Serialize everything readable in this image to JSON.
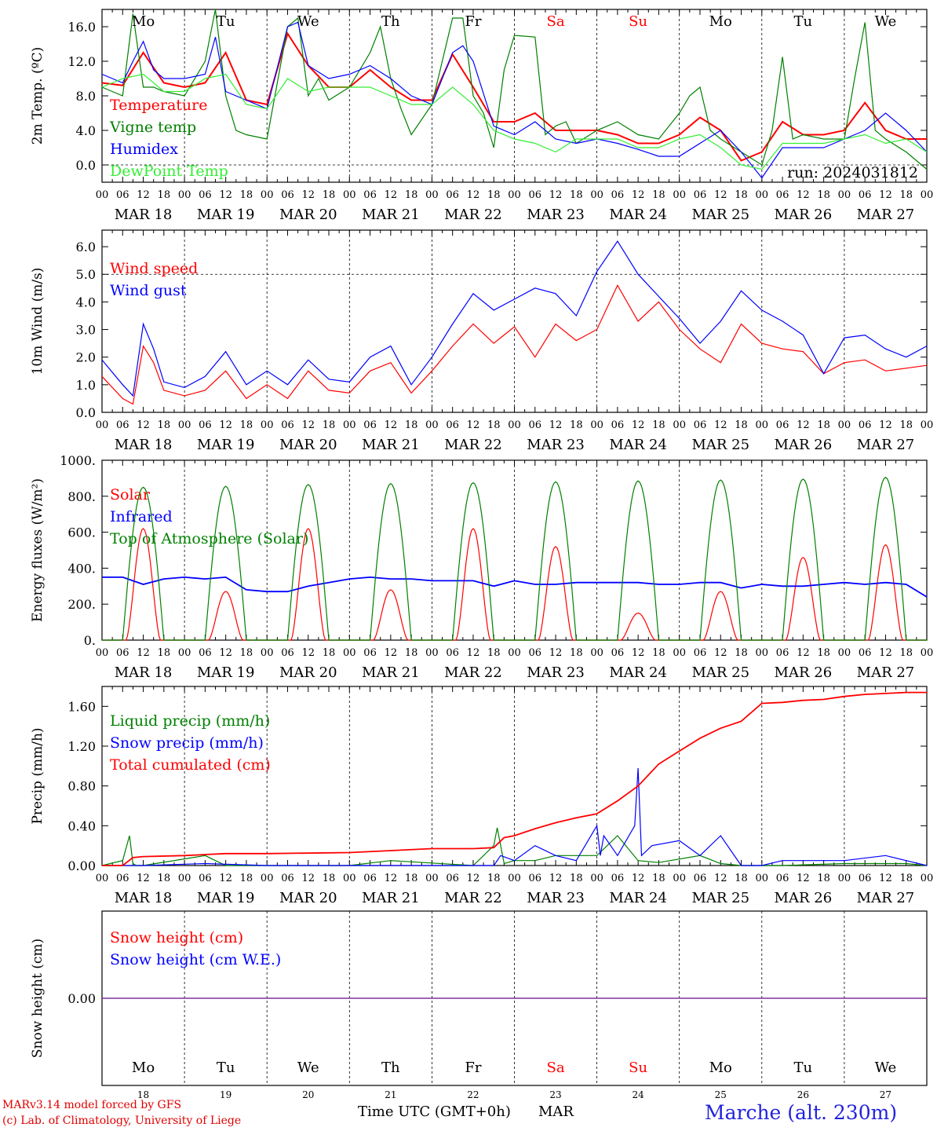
{
  "chart_data": [
    {
      "type": "line",
      "ylabel": "2m Temp. (ºC)",
      "ylim": [
        -2,
        18
      ],
      "yticks": [
        0,
        4,
        8,
        12,
        16
      ],
      "ytick_labels": [
        "0.0",
        "4.0",
        "8.0",
        "12.0",
        "16.0"
      ],
      "x_unit": "hours since MAR 18 00 UTC",
      "annotation": "run: 2024031812",
      "zero_line": "dashed",
      "series": [
        {
          "name": "Temperature",
          "color": "#ff0000",
          "x": [
            0,
            6,
            12,
            18,
            24,
            30,
            36,
            42,
            48,
            54,
            60,
            66,
            72,
            78,
            84,
            90,
            96,
            102,
            108,
            114,
            120,
            126,
            132,
            138,
            144,
            150,
            156,
            162,
            168,
            174,
            180,
            186,
            192,
            198,
            204,
            210,
            216,
            222,
            228,
            234,
            240
          ],
          "values": [
            9.5,
            9.2,
            13,
            9.5,
            9.0,
            9.5,
            13,
            7.5,
            7.0,
            15.2,
            11.5,
            9,
            9,
            11,
            9,
            7.5,
            7.5,
            12.8,
            9,
            5,
            5,
            6,
            4,
            4,
            4,
            3.5,
            2.5,
            2.5,
            3.5,
            5.5,
            4,
            0.5,
            1.5,
            5,
            3.5,
            3.5,
            4,
            7.2,
            4,
            3,
            3
          ]
        },
        {
          "name": "Vigne temp",
          "color": "#008000",
          "x": [
            0,
            6,
            9,
            12,
            15,
            18,
            24,
            30,
            33,
            36,
            39,
            42,
            48,
            54,
            57,
            60,
            63,
            66,
            72,
            78,
            81,
            84,
            87,
            90,
            96,
            102,
            105,
            108,
            111,
            114,
            117,
            120,
            126,
            129,
            132,
            135,
            138,
            144,
            150,
            156,
            162,
            168,
            171,
            174,
            177,
            180,
            186,
            192,
            195,
            198,
            201,
            204,
            210,
            216,
            219,
            222,
            225,
            228,
            234,
            240
          ],
          "values": [
            9,
            8,
            17.5,
            9,
            9,
            8.5,
            8,
            12,
            18,
            8,
            4,
            3.5,
            3,
            16,
            17,
            8,
            10,
            7.5,
            9,
            13,
            16,
            10,
            6.5,
            3.5,
            7,
            17,
            17,
            8,
            6,
            2,
            11,
            15,
            14.8,
            3.5,
            4.5,
            5,
            2.5,
            4,
            5,
            3.5,
            3,
            6,
            8,
            9,
            4,
            3,
            1.5,
            0,
            4,
            12.5,
            3,
            3.5,
            3,
            3,
            10,
            16.5,
            4,
            3,
            1.5,
            -0.5
          ]
        },
        {
          "name": "Humidex",
          "color": "#0000ff",
          "x": [
            0,
            6,
            9,
            12,
            15,
            18,
            24,
            30,
            33,
            36,
            42,
            48,
            54,
            57,
            60,
            66,
            72,
            78,
            84,
            90,
            96,
            102,
            105,
            108,
            114,
            120,
            126,
            132,
            138,
            144,
            150,
            156,
            162,
            168,
            174,
            180,
            186,
            192,
            198,
            204,
            210,
            216,
            222,
            228,
            234,
            240
          ],
          "values": [
            10.5,
            9.5,
            12,
            14.3,
            11,
            10,
            10,
            10.5,
            14.8,
            8.5,
            7.5,
            6.5,
            16,
            16.5,
            11.5,
            10,
            10.5,
            11.5,
            10,
            8,
            7,
            13,
            13.8,
            12,
            4.5,
            3.5,
            5,
            3,
            2.5,
            3,
            2.5,
            1.8,
            1,
            1,
            2.5,
            4,
            1.5,
            -1.5,
            2,
            2,
            2,
            3,
            4,
            6,
            4,
            1.5
          ]
        },
        {
          "name": "DewPoint Temp",
          "color": "#33ee33",
          "x": [
            0,
            6,
            12,
            18,
            24,
            30,
            36,
            42,
            48,
            54,
            60,
            66,
            72,
            78,
            84,
            90,
            96,
            102,
            108,
            114,
            120,
            126,
            132,
            138,
            144,
            150,
            156,
            162,
            168,
            174,
            180,
            186,
            192,
            198,
            204,
            210,
            216,
            222,
            228,
            234,
            240
          ],
          "values": [
            9,
            10,
            10.5,
            8.5,
            8.5,
            10,
            10.5,
            7,
            6.5,
            10,
            8.5,
            9,
            9,
            9,
            8,
            7,
            7,
            9,
            7,
            4,
            3,
            2.5,
            1.5,
            3,
            3,
            3,
            2,
            2,
            3,
            3.5,
            2,
            0,
            -0.5,
            2.5,
            2.5,
            2.5,
            3,
            3.5,
            2.5,
            3,
            1.5
          ]
        }
      ]
    },
    {
      "type": "line",
      "ylabel": "10m Wind (m/s)",
      "ylim": [
        0,
        6.6
      ],
      "yticks": [
        0,
        1,
        2,
        3,
        4,
        5,
        6
      ],
      "ytick_labels": [
        "0.0",
        "1.0",
        "2.0",
        "3.0",
        "4.0",
        "5.0",
        "6.0"
      ],
      "reference_line": 5.0,
      "series": [
        {
          "name": "Wind speed",
          "color": "#ff0000",
          "x": [
            0,
            6,
            9,
            12,
            15,
            18,
            24,
            30,
            36,
            42,
            48,
            54,
            60,
            66,
            72,
            78,
            84,
            90,
            96,
            102,
            108,
            114,
            120,
            126,
            132,
            138,
            144,
            150,
            156,
            162,
            168,
            174,
            180,
            186,
            192,
            198,
            204,
            210,
            216,
            222,
            228,
            234,
            240
          ],
          "values": [
            1.3,
            0.5,
            0.3,
            2.4,
            1.8,
            0.8,
            0.6,
            0.8,
            1.5,
            0.5,
            1.0,
            0.5,
            1.5,
            0.8,
            0.7,
            1.5,
            1.8,
            0.7,
            1.5,
            2.4,
            3.2,
            2.5,
            3.1,
            2.0,
            3.2,
            2.6,
            3.0,
            4.6,
            3.3,
            4.0,
            3.0,
            2.3,
            1.8,
            3.2,
            2.5,
            2.3,
            2.2,
            1.4,
            1.8,
            1.9,
            1.5,
            1.6,
            1.7
          ]
        },
        {
          "name": "Wind gust",
          "color": "#0000ff",
          "x": [
            0,
            6,
            9,
            12,
            15,
            18,
            24,
            30,
            36,
            42,
            48,
            54,
            60,
            66,
            72,
            78,
            84,
            90,
            96,
            102,
            108,
            114,
            120,
            126,
            132,
            138,
            144,
            150,
            156,
            162,
            168,
            174,
            180,
            186,
            192,
            198,
            204,
            210,
            216,
            222,
            228,
            234,
            240
          ],
          "values": [
            1.9,
            1.0,
            0.6,
            3.2,
            2.3,
            1.1,
            0.9,
            1.3,
            2.2,
            1.0,
            1.5,
            1.0,
            1.9,
            1.2,
            1.1,
            2.0,
            2.4,
            1.0,
            2.0,
            3.2,
            4.3,
            3.7,
            4.1,
            4.5,
            4.3,
            3.5,
            5.1,
            6.2,
            5.0,
            4.2,
            3.4,
            2.5,
            3.3,
            4.4,
            3.7,
            3.3,
            2.8,
            1.4,
            2.7,
            2.8,
            2.3,
            2.0,
            2.4
          ]
        }
      ]
    },
    {
      "type": "line",
      "ylabel": "Energy fluxes (W/m²)",
      "ylim": [
        0,
        1000
      ],
      "yticks": [
        0,
        200,
        400,
        600,
        800,
        1000
      ],
      "ytick_labels": [
        "0.",
        "200.",
        "400.",
        "600.",
        "800.",
        "1000."
      ],
      "series": [
        {
          "name": "Solar",
          "color": "#ff0000",
          "day_peaks": [
            620,
            270,
            620,
            280,
            620,
            520,
            150,
            270,
            460,
            530
          ]
        },
        {
          "name": "Infrared",
          "color": "#0000ff",
          "x": [
            0,
            6,
            12,
            18,
            24,
            30,
            36,
            42,
            48,
            54,
            60,
            66,
            72,
            78,
            84,
            90,
            96,
            102,
            108,
            114,
            120,
            126,
            132,
            138,
            144,
            150,
            156,
            162,
            168,
            174,
            180,
            186,
            192,
            198,
            204,
            210,
            216,
            222,
            228,
            234,
            240
          ],
          "values": [
            350,
            350,
            310,
            340,
            350,
            340,
            350,
            280,
            270,
            270,
            300,
            320,
            340,
            350,
            340,
            340,
            330,
            330,
            330,
            300,
            330,
            310,
            310,
            320,
            320,
            320,
            320,
            310,
            310,
            320,
            320,
            290,
            310,
            300,
            300,
            310,
            320,
            310,
            320,
            310,
            240
          ]
        },
        {
          "name": "Top of Atmosphere (Solar)",
          "color": "#008000",
          "day_peaks": [
            850,
            855,
            865,
            870,
            875,
            880,
            885,
            890,
            895,
            905
          ]
        }
      ]
    },
    {
      "type": "line",
      "ylabel": "Precip (mm/h)",
      "ylim": [
        0,
        1.8
      ],
      "yticks": [
        0,
        0.4,
        0.8,
        1.2,
        1.6
      ],
      "ytick_labels": [
        "0.00",
        "0.40",
        "0.80",
        "1.20",
        "1.60"
      ],
      "series": [
        {
          "name": "Liquid precip (mm/h)",
          "color": "#008000",
          "x": [
            0,
            6,
            8,
            9,
            10,
            12,
            30,
            36,
            48,
            72,
            84,
            108,
            114,
            115,
            117,
            120,
            126,
            132,
            144,
            150,
            156,
            162,
            174,
            180,
            186,
            192,
            198,
            216,
            234,
            240
          ],
          "values": [
            0,
            0.05,
            0.3,
            0.02,
            0,
            0,
            0.1,
            0,
            0,
            0,
            0.05,
            0,
            0.2,
            0.38,
            0.02,
            0.05,
            0.05,
            0.1,
            0.1,
            0.3,
            0.05,
            0.03,
            0.1,
            0.02,
            0,
            0,
            0,
            0.02,
            0.02,
            0
          ]
        },
        {
          "name": "Snow precip (mm/h)",
          "color": "#0000ff",
          "x": [
            0,
            6,
            12,
            30,
            48,
            84,
            114,
            116,
            120,
            126,
            132,
            138,
            144,
            145,
            146,
            150,
            155,
            156,
            157,
            160,
            168,
            174,
            180,
            186,
            192,
            198,
            216,
            228,
            234,
            240
          ],
          "values": [
            0,
            0,
            0,
            0.02,
            0,
            0,
            0,
            0.1,
            0.05,
            0.2,
            0.1,
            0.05,
            0.4,
            0.1,
            0.3,
            0.1,
            0.4,
            0.98,
            0.1,
            0.2,
            0.25,
            0.1,
            0.3,
            0,
            0,
            0.05,
            0.05,
            0.1,
            0.05,
            0
          ]
        },
        {
          "name": "Total cumulated (cm)",
          "color": "#ff0000",
          "x": [
            0,
            6,
            9,
            12,
            24,
            36,
            48,
            72,
            84,
            96,
            108,
            114,
            117,
            120,
            126,
            132,
            138,
            144,
            150,
            156,
            162,
            168,
            174,
            180,
            186,
            192,
            198,
            204,
            210,
            216,
            222,
            228,
            234,
            240
          ],
          "values": [
            0,
            0,
            0.08,
            0.09,
            0.1,
            0.12,
            0.12,
            0.13,
            0.15,
            0.17,
            0.17,
            0.18,
            0.28,
            0.3,
            0.37,
            0.43,
            0.48,
            0.52,
            0.65,
            0.8,
            1.02,
            1.15,
            1.28,
            1.38,
            1.45,
            1.63,
            1.64,
            1.66,
            1.67,
            1.7,
            1.72,
            1.73,
            1.74,
            1.74
          ]
        }
      ]
    },
    {
      "type": "line",
      "ylabel": "Snow height (cm)",
      "ylim": [
        -1,
        1
      ],
      "yticks": [
        0
      ],
      "ytick_labels": [
        "0.00"
      ],
      "series": [
        {
          "name": "Snow height (cm)",
          "color": "#ff0000",
          "values": [
            0
          ]
        },
        {
          "name": "Snow height (cm W.E.)",
          "color": "#0000ff",
          "values": [
            0
          ]
        }
      ]
    }
  ],
  "days": {
    "weekdays": [
      "Mo",
      "Tu",
      "We",
      "Th",
      "Fr",
      "Sa",
      "Su",
      "Mo",
      "Tu",
      "We"
    ],
    "weekend_color": "#ff0000",
    "weekday_color": "#000000",
    "weekend_flags": [
      false,
      false,
      false,
      false,
      false,
      true,
      true,
      false,
      false,
      false
    ],
    "dates": [
      "MAR 18",
      "MAR 19",
      "MAR 20",
      "MAR 21",
      "MAR 22",
      "MAR 23",
      "MAR 24",
      "MAR 25",
      "MAR 26",
      "MAR 27"
    ],
    "day_numbers": [
      "18",
      "19",
      "20",
      "21",
      "22",
      "23",
      "24",
      "25",
      "26",
      "27"
    ],
    "hour_labels": [
      "00",
      "06",
      "12",
      "18"
    ],
    "end_hour_label": "00"
  },
  "footer": {
    "credit_line1": "MARv3.14 model forced by GFS",
    "credit_line2": "(c) Lab. of Climatology, University of Liege",
    "xaxis_title": "Time UTC (GMT+0h)",
    "month": "MAR",
    "location": "Marche (alt. 230m)"
  }
}
